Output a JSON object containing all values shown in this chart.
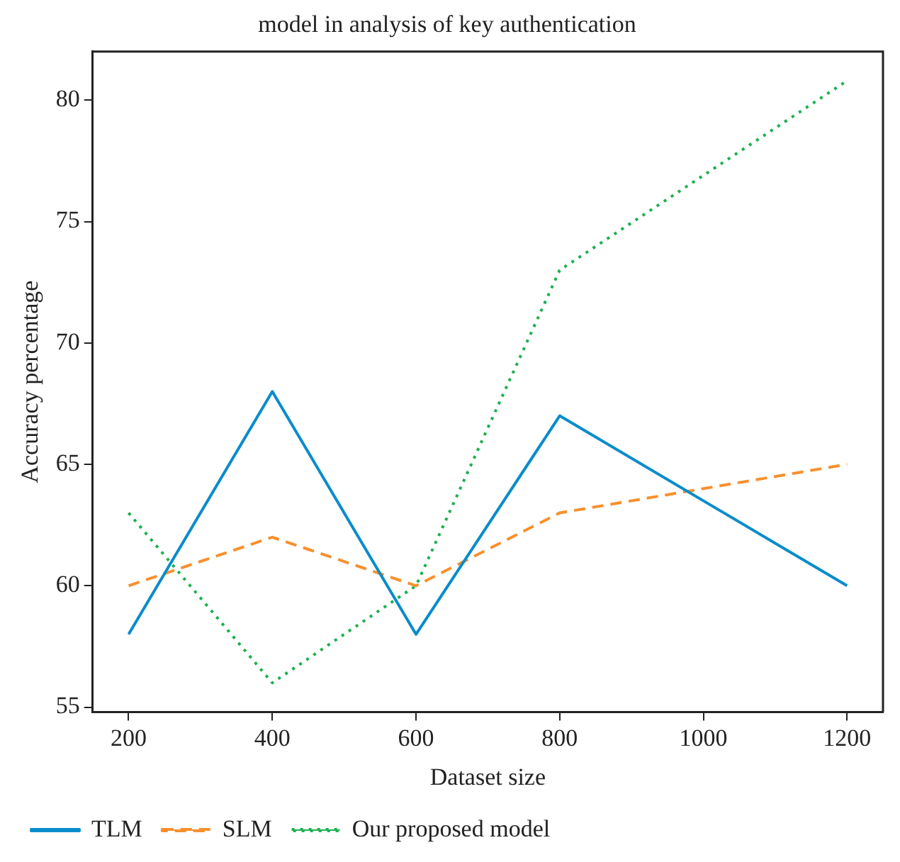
{
  "chart_data": {
    "type": "line",
    "title": "model in analysis of key authentication",
    "xlabel": "Dataset size",
    "ylabel": "Accuracy percentage",
    "xlim": [
      150,
      1250
    ],
    "xticks": [
      200,
      400,
      600,
      800,
      1000,
      1200
    ],
    "ylim": [
      54.8,
      82
    ],
    "yticks": [
      55,
      60,
      65,
      70,
      75,
      80
    ],
    "grid": false,
    "legend": "bottom",
    "marker": "none",
    "series": [
      {
        "name": "TLM",
        "color": "#0a8ccb",
        "line_style": "solid",
        "x": [
          200,
          400,
          600,
          800,
          1200
        ],
        "values": [
          58,
          68,
          58,
          67,
          60
        ]
      },
      {
        "name": "SLM",
        "color": "#f7902e",
        "line_style": "dashed",
        "x": [
          200,
          400,
          600,
          800,
          1200
        ],
        "values": [
          60,
          62,
          60,
          63,
          65
        ]
      },
      {
        "name": "Our proposed model",
        "color": "#1cb050",
        "line_style": "dotted",
        "x": [
          200,
          400,
          600,
          800,
          1200
        ],
        "values": [
          63,
          56,
          60,
          73,
          80.8
        ]
      }
    ]
  }
}
